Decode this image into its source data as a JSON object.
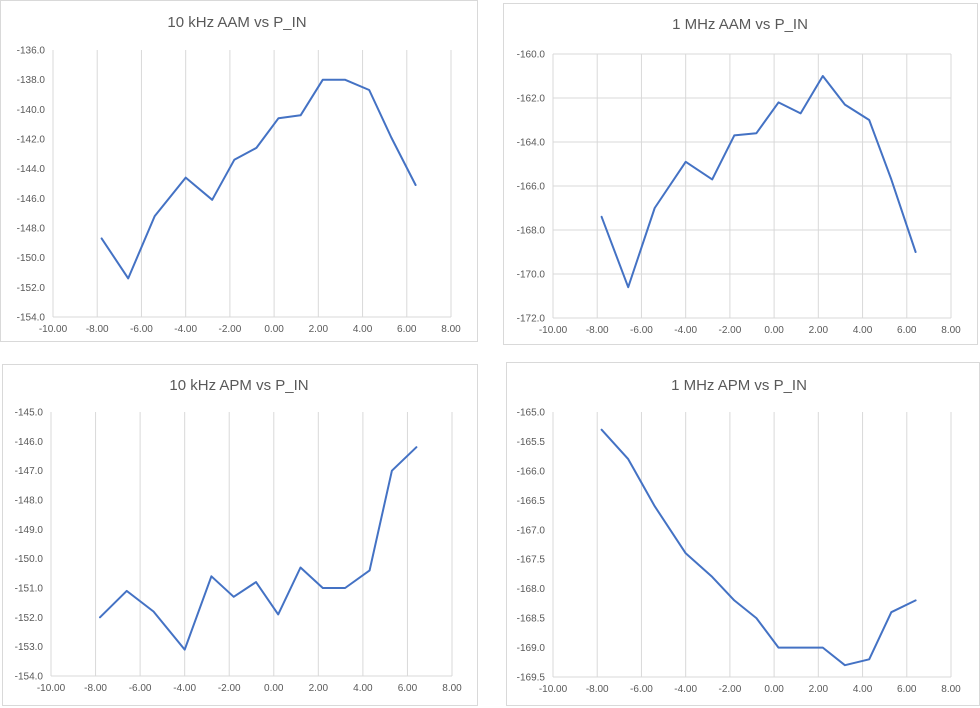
{
  "chart_data": [
    {
      "type": "line",
      "title": "10 kHz AAM vs P_IN",
      "xlim": [
        -10,
        8
      ],
      "ylim": [
        -154,
        -136
      ],
      "x_ticks": [
        "-10.00",
        "-8.00",
        "-6.00",
        "-4.00",
        "-2.00",
        "0.00",
        "2.00",
        "4.00",
        "6.00",
        "8.00"
      ],
      "y_ticks": [
        "-136.0",
        "-138.0",
        "-140.0",
        "-142.0",
        "-144.0",
        "-146.0",
        "-148.0",
        "-150.0",
        "-152.0",
        "-154.0"
      ],
      "grid": "vertical",
      "color": "#4472c4",
      "x": [
        -7.8,
        -6.6,
        -5.4,
        -4.0,
        -2.8,
        -1.8,
        -0.8,
        0.2,
        1.2,
        2.2,
        3.2,
        4.3,
        5.3,
        6.4
      ],
      "y": [
        -148.7,
        -151.4,
        -147.2,
        -144.6,
        -146.1,
        -143.4,
        -142.6,
        -140.6,
        -140.4,
        -138.0,
        -138.0,
        -138.7,
        -141.9,
        -145.1
      ]
    },
    {
      "type": "line",
      "title": "1 MHz AAM vs P_IN",
      "xlim": [
        -10,
        8
      ],
      "ylim": [
        -172,
        -160
      ],
      "x_ticks": [
        "-10.00",
        "-8.00",
        "-6.00",
        "-4.00",
        "-2.00",
        "0.00",
        "2.00",
        "4.00",
        "6.00",
        "8.00"
      ],
      "y_ticks": [
        "-160.0",
        "-162.0",
        "-164.0",
        "-166.0",
        "-168.0",
        "-170.0",
        "-172.0"
      ],
      "grid": "both",
      "color": "#4472c4",
      "x": [
        -7.8,
        -6.6,
        -5.4,
        -4.0,
        -2.8,
        -1.8,
        -0.8,
        0.2,
        1.2,
        2.2,
        3.2,
        4.3,
        5.3,
        6.4
      ],
      "y": [
        -167.4,
        -170.6,
        -167.0,
        -164.9,
        -165.7,
        -163.7,
        -163.6,
        -162.2,
        -162.7,
        -161.0,
        -162.3,
        -163.0,
        -165.7,
        -169.0
      ]
    },
    {
      "type": "line",
      "title": "10 kHz APM vs P_IN",
      "xlim": [
        -10,
        8
      ],
      "ylim": [
        -154,
        -145
      ],
      "x_ticks": [
        "-10.00",
        "-8.00",
        "-6.00",
        "-4.00",
        "-2.00",
        "0.00",
        "2.00",
        "4.00",
        "6.00",
        "8.00"
      ],
      "y_ticks": [
        "-145.0",
        "-146.0",
        "-147.0",
        "-148.0",
        "-149.0",
        "-150.0",
        "-151.0",
        "-152.0",
        "-153.0",
        "-154.0"
      ],
      "grid": "vertical",
      "color": "#4472c4",
      "x": [
        -7.8,
        -6.6,
        -5.4,
        -4.0,
        -2.8,
        -1.8,
        -0.8,
        0.2,
        1.2,
        2.2,
        3.2,
        4.3,
        5.3,
        6.4
      ],
      "y": [
        -152.0,
        -151.1,
        -151.8,
        -153.1,
        -150.6,
        -151.3,
        -150.8,
        -151.9,
        -150.3,
        -151.0,
        -151.0,
        -150.4,
        -147.0,
        -146.2
      ]
    },
    {
      "type": "line",
      "title": "1 MHz APM vs P_IN",
      "xlim": [
        -10,
        8
      ],
      "ylim": [
        -169.5,
        -165
      ],
      "x_ticks": [
        "-10.00",
        "-8.00",
        "-6.00",
        "-4.00",
        "-2.00",
        "0.00",
        "2.00",
        "4.00",
        "6.00",
        "8.00"
      ],
      "y_ticks": [
        "-165.0",
        "-165.5",
        "-166.0",
        "-166.5",
        "-167.0",
        "-167.5",
        "-168.0",
        "-168.5",
        "-169.0",
        "-169.5"
      ],
      "grid": "vertical",
      "color": "#4472c4",
      "x": [
        -7.8,
        -6.6,
        -5.4,
        -4.0,
        -2.8,
        -1.8,
        -0.8,
        0.2,
        1.2,
        2.2,
        3.2,
        4.3,
        5.3,
        6.4
      ],
      "y": [
        -165.3,
        -165.8,
        -166.6,
        -167.4,
        -167.8,
        -168.2,
        -168.5,
        -169.0,
        -169.0,
        -169.0,
        -169.3,
        -169.2,
        -168.4,
        -168.2
      ]
    }
  ]
}
